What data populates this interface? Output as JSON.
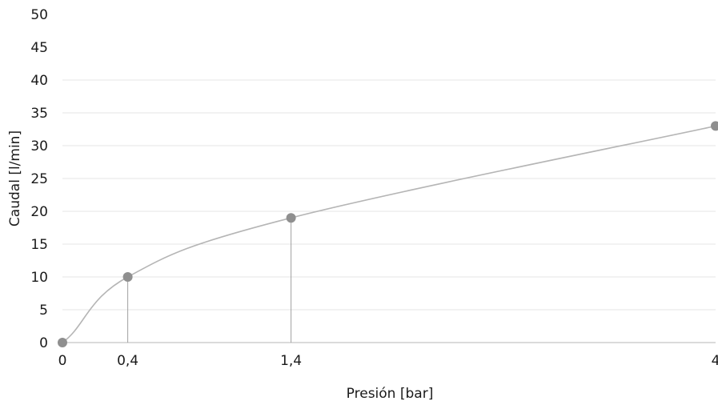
{
  "chart_data": {
    "type": "line",
    "xlabel": "Presión [bar]",
    "ylabel": "Caudal [l/min]",
    "x_ticks": [
      "0",
      "0,4",
      "1,4",
      "4"
    ],
    "y_ticks": [
      "0",
      "5",
      "10",
      "15",
      "20",
      "25",
      "30",
      "35",
      "40",
      "45",
      "50"
    ],
    "ylim": [
      0,
      50
    ],
    "xlim": [
      0,
      4
    ],
    "grid": true,
    "series": [
      {
        "x": [
          0,
          0.4,
          1.4,
          4
        ],
        "y": [
          0,
          10,
          19,
          33
        ]
      }
    ],
    "colors": {
      "line": "#b5b5b5",
      "marker": "#8f8f8f",
      "drop_line": "#a0a0a0",
      "grid": "#e6e6e6"
    }
  }
}
